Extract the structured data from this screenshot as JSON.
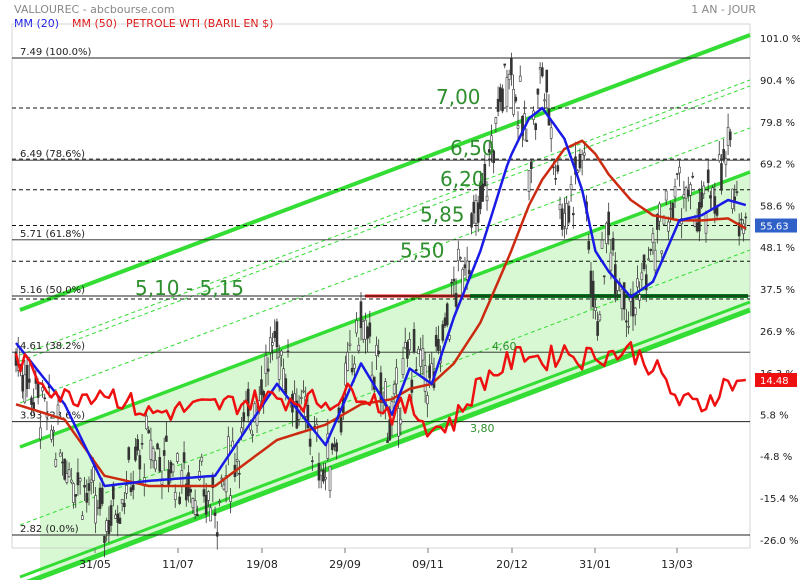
{
  "header": {
    "ticker": "VALLOUREC - abcbourse.com",
    "period": "1 AN - JOUR",
    "legend": [
      {
        "label": "MM (20)",
        "color": "#1a1ae6"
      },
      {
        "label": "MM (50)",
        "color": "#e01010"
      },
      {
        "label": "PETROLE WTI (BARIL EN $)",
        "color": "#e01010"
      }
    ]
  },
  "colors": {
    "candle": "#333333",
    "channel": "#33dd33",
    "channel_fill": "#c8f5c0",
    "mm20": "#1a1ae6",
    "mm50": "#cc2a10",
    "oil": "#ee1010",
    "support": "#007a1a",
    "resistance": "#ee1010"
  },
  "chart_data": {
    "type": "candlestick",
    "x_ticks": [
      "31/05",
      "11/07",
      "19/08",
      "29/09",
      "09/11",
      "20/12",
      "31/01",
      "13/03"
    ],
    "right_axis": {
      "ticks": [
        "101.0 %",
        "90.4 %",
        "79.8 %",
        "69.2 %",
        "58.6 %",
        "48.1 %",
        "37.5 %",
        "26.9 %",
        "16.3 %",
        "5.8 %",
        "-4.8 %",
        "-15.4 %",
        "-26.0 %"
      ],
      "range": [
        -26.0,
        101.0
      ]
    },
    "price_range": [
      2.82,
      7.49
    ],
    "fibonacci_levels": [
      {
        "label": "7.49  (100.0%)",
        "price": 7.49
      },
      {
        "label": "6.49  (78.6%)",
        "price": 6.49
      },
      {
        "label": "5.71  (61.8%)",
        "price": 5.71
      },
      {
        "label": "5.16  (50.0%)",
        "price": 5.16
      },
      {
        "label": "4.61  (38.2%)",
        "price": 4.61
      },
      {
        "label": "3.93  (23.6%)",
        "price": 3.93
      },
      {
        "label": "2.82  (0.0%)",
        "price": 2.82
      }
    ],
    "price_annotations": [
      {
        "label": "7,00",
        "price": 7.0
      },
      {
        "label": "6,50",
        "price": 6.5
      },
      {
        "label": "6,20",
        "price": 6.2
      },
      {
        "label": "5,85",
        "price": 5.85
      },
      {
        "label": "5,50",
        "price": 5.5
      },
      {
        "label": "5,10 - 5,15",
        "price": 5.13
      }
    ],
    "oil_annotations": [
      {
        "label": "4,60",
        "price": 4.6
      },
      {
        "label": "3,80",
        "price": 3.8
      }
    ],
    "last_values": [
      {
        "label": "55.63",
        "pct": 55.63,
        "series": "Vallourec"
      },
      {
        "label": "14.48",
        "pct": 14.48,
        "series": "PETROLE WTI (BARIL EN $)"
      }
    ],
    "key_points": {
      "days": [
        0,
        22,
        40,
        60,
        90,
        118,
        140,
        156,
        170,
        178,
        188,
        198,
        210,
        223,
        232,
        238,
        248,
        256,
        262,
        268,
        278,
        288,
        300,
        310,
        322,
        330
      ],
      "prices": [
        4.6,
        3.6,
        2.95,
        3.7,
        3.1,
        4.7,
        3.4,
        4.9,
        3.9,
        4.6,
        4.3,
        5.2,
        6.0,
        7.5,
        6.5,
        7.4,
        5.9,
        6.6,
        4.9,
        5.8,
        5.0,
        5.6,
        6.2,
        5.9,
        6.5,
        5.85
      ],
      "mm20": [
        4.7,
        4.1,
        3.3,
        3.35,
        3.4,
        4.3,
        3.7,
        4.5,
        4.0,
        4.45,
        4.3,
        4.95,
        5.6,
        6.5,
        6.9,
        7.0,
        6.7,
        6.2,
        5.6,
        5.4,
        5.15,
        5.3,
        5.9,
        5.95,
        6.1,
        6.05
      ],
      "mm50": [
        4.1,
        3.95,
        3.4,
        3.3,
        3.3,
        3.75,
        3.9,
        4.1,
        4.15,
        4.25,
        4.3,
        4.5,
        4.9,
        5.55,
        6.05,
        6.3,
        6.6,
        6.68,
        6.55,
        6.35,
        6.1,
        5.95,
        5.9,
        5.9,
        5.92,
        5.82
      ],
      "oil_pct": [
        20,
        10,
        12,
        6,
        8,
        10,
        9,
        12,
        6,
        8,
        2,
        4,
        14,
        19,
        22,
        19,
        22,
        20,
        21,
        21,
        22,
        18,
        9,
        8,
        14,
        14.48
      ]
    },
    "oil_axis_range": [
      -26.0,
      101.0
    ],
    "n_days": 331
  }
}
